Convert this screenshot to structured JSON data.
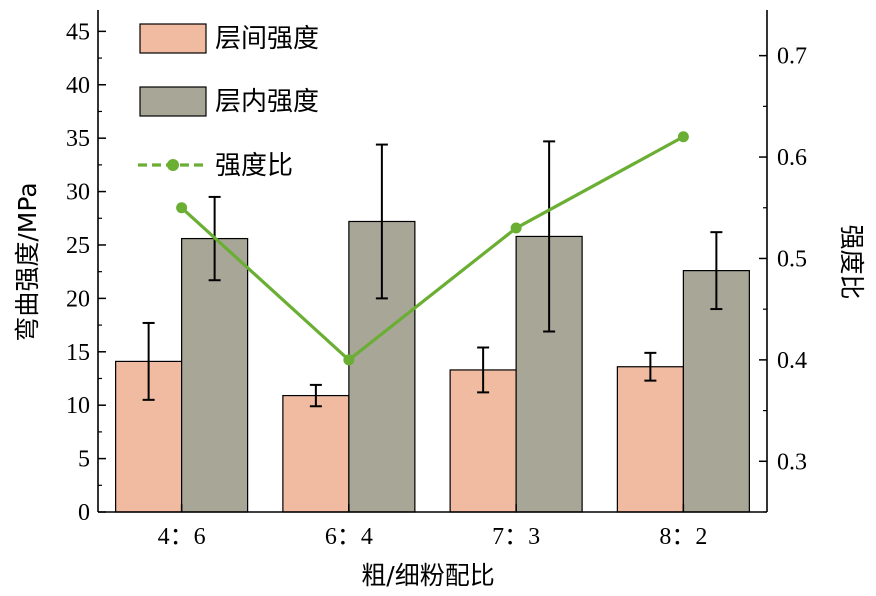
{
  "chart_data": {
    "type": "bar",
    "categories": [
      "4：6",
      "6：4",
      "7：3",
      "8：2"
    ],
    "xlabel": "粗/细粉配比",
    "ylabel": "弯曲强度/MPa",
    "y2label": "强度比",
    "ylim": [
      0,
      47
    ],
    "y2lim": [
      0.25,
      0.745
    ],
    "yticks": [
      0,
      5,
      10,
      15,
      20,
      25,
      30,
      35,
      40,
      45
    ],
    "y2ticks": [
      "0.3",
      "0.4",
      "0.5",
      "0.6",
      "0.7"
    ],
    "grid": false,
    "legend_position": "top-left",
    "series": [
      {
        "name": "层间强度",
        "type": "bar",
        "axis": "left",
        "color": "#F0BBA0",
        "values": [
          14.1,
          10.9,
          13.3,
          13.6
        ],
        "errors": [
          3.6,
          1.0,
          2.1,
          1.3
        ]
      },
      {
        "name": "层内强度",
        "type": "bar",
        "axis": "left",
        "color": "#A8A696",
        "values": [
          25.6,
          27.2,
          25.8,
          22.6
        ],
        "errors": [
          3.9,
          7.2,
          8.9,
          3.6
        ]
      },
      {
        "name": "强度比",
        "type": "line",
        "axis": "right",
        "color": "#6AAE33",
        "values": [
          0.55,
          0.4,
          0.53,
          0.62
        ]
      }
    ]
  }
}
